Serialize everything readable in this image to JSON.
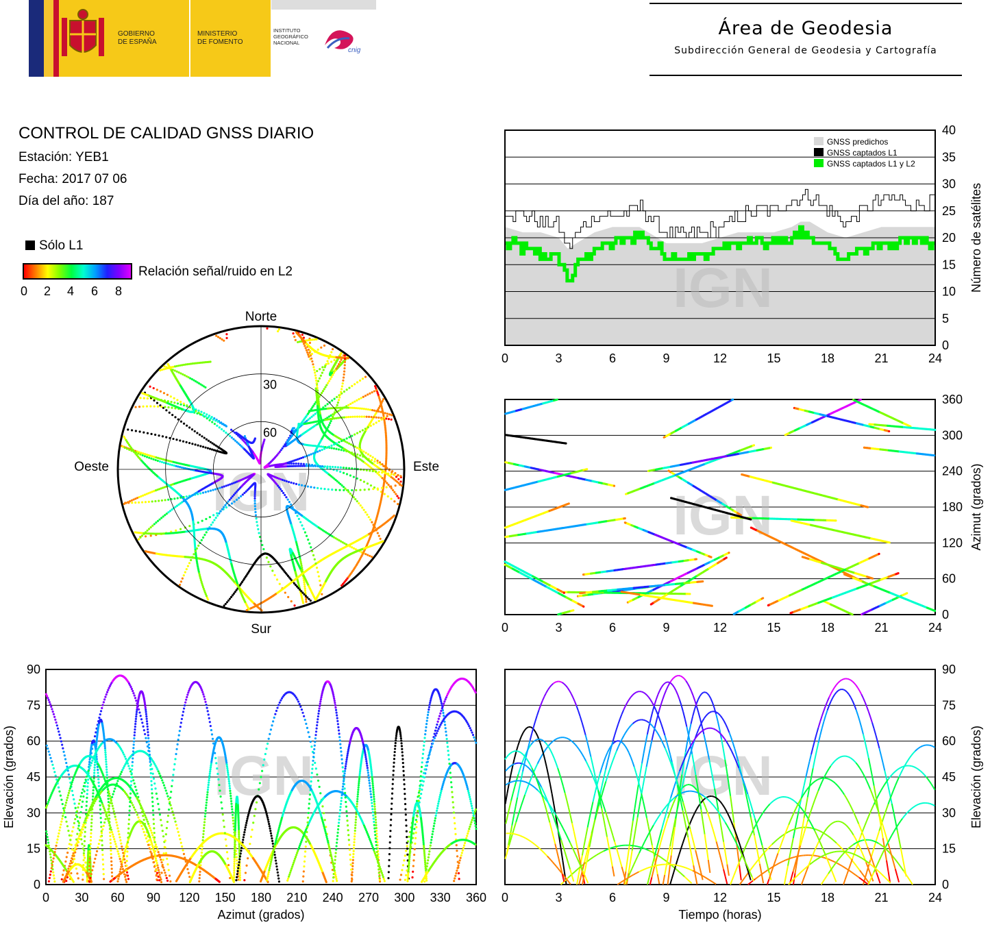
{
  "header": {
    "gobierno": [
      "GOBIERNO",
      "DE ESPAÑA"
    ],
    "ministerio": [
      "MINISTERIO",
      "DE FOMENTO"
    ],
    "instituto": [
      "INSTITUTO",
      "GEOGRÁFICO",
      "NACIONAL"
    ],
    "cnig": "cnig",
    "area_title": "Área de Geodesia",
    "area_subtitle": "Subdirección General de Geodesia y Cartografía"
  },
  "info": {
    "title": "CONTROL DE CALIDAD GNSS DIARIO",
    "station": "Estación: YEB1",
    "date": "Fecha: 2017 07 06",
    "doy": "Día del año: 187"
  },
  "legend": {
    "only_l1": "Sólo L1",
    "snr_label": "Relación señal/ruido en L2",
    "snr_ticks": [
      "0",
      "2",
      "4",
      "6",
      "8"
    ],
    "colors": [
      "#ff0000",
      "#ff8000",
      "#ffff00",
      "#80ff00",
      "#00ff40",
      "#00ffd0",
      "#00a0ff",
      "#2020ff",
      "#8000ff",
      "#e000ff"
    ]
  },
  "watermark": "IGN",
  "chart_data": [
    {
      "type": "area",
      "ylabel": "Número de satélites",
      "xlim": [
        0,
        24
      ],
      "ylim": [
        0,
        40
      ],
      "xticks": [
        0,
        3,
        6,
        9,
        12,
        15,
        18,
        21,
        24
      ],
      "yticks": [
        0,
        5,
        10,
        15,
        20,
        25,
        30,
        35,
        40
      ],
      "legend": [
        "GNSS predichos",
        "GNSS captados L1",
        "GNSS captados L1 y L2"
      ],
      "series_colors": [
        "#d8d8d8",
        "#000000",
        "#00ee00"
      ],
      "x": [
        0,
        1,
        2,
        3,
        3.5,
        4,
        5,
        6,
        7,
        7.5,
        8,
        9,
        10,
        11,
        12,
        13,
        14,
        15,
        16,
        16.5,
        17,
        18,
        19,
        20,
        21,
        22,
        23,
        24
      ],
      "series": [
        {
          "name": "GNSS predichos",
          "values": [
            22,
            21,
            21,
            20,
            18,
            19,
            21,
            22,
            22,
            22,
            21,
            19,
            19,
            19,
            20,
            21,
            21,
            21,
            22,
            23,
            23,
            21,
            20,
            21,
            22,
            22,
            22,
            22
          ]
        },
        {
          "name": "GNSS captados L1",
          "values": [
            25,
            24,
            23,
            22,
            18,
            21,
            24,
            24,
            25,
            26,
            24,
            21,
            20,
            21,
            22,
            24,
            25,
            25,
            27,
            28,
            28,
            25,
            23,
            25,
            27,
            27,
            26,
            27
          ]
        },
        {
          "name": "GNSS captados L1 y L2",
          "values": [
            19,
            18,
            17,
            16,
            12,
            15,
            18,
            19,
            20,
            21,
            19,
            17,
            16,
            17,
            18,
            19,
            19,
            19,
            20,
            21,
            20,
            18,
            16,
            18,
            19,
            19,
            20,
            19
          ]
        }
      ]
    },
    {
      "type": "scatter",
      "ylabel": "Azimut (grados)",
      "xlim": [
        0,
        24
      ],
      "ylim": [
        0,
        360
      ],
      "xticks": [
        0,
        3,
        6,
        9,
        12,
        15,
        18,
        21,
        24
      ],
      "yticks": [
        0,
        60,
        120,
        180,
        240,
        300,
        360
      ]
    },
    {
      "type": "scatter",
      "subtype": "skyplot",
      "labels": {
        "n": "Norte",
        "s": "Sur",
        "w": "Oeste",
        "e": "Este"
      },
      "rings": [
        "30",
        "60"
      ]
    },
    {
      "type": "scatter",
      "xlabel": "Azimut (grados)",
      "ylabel": "Elevación (grados)",
      "xlim": [
        0,
        360
      ],
      "ylim": [
        0,
        90
      ],
      "xticks": [
        0,
        30,
        60,
        90,
        120,
        150,
        180,
        210,
        240,
        270,
        300,
        330,
        360
      ],
      "yticks": [
        0,
        15,
        30,
        45,
        60,
        75,
        90
      ]
    },
    {
      "type": "line",
      "xlabel": "Tiempo (horas)",
      "ylabel": "Elevación (grados)",
      "xlim": [
        0,
        24
      ],
      "ylim": [
        0,
        90
      ],
      "xticks": [
        0,
        3,
        6,
        9,
        12,
        15,
        18,
        21,
        24
      ],
      "yticks": [
        0,
        15,
        30,
        45,
        60,
        75,
        90
      ]
    }
  ]
}
